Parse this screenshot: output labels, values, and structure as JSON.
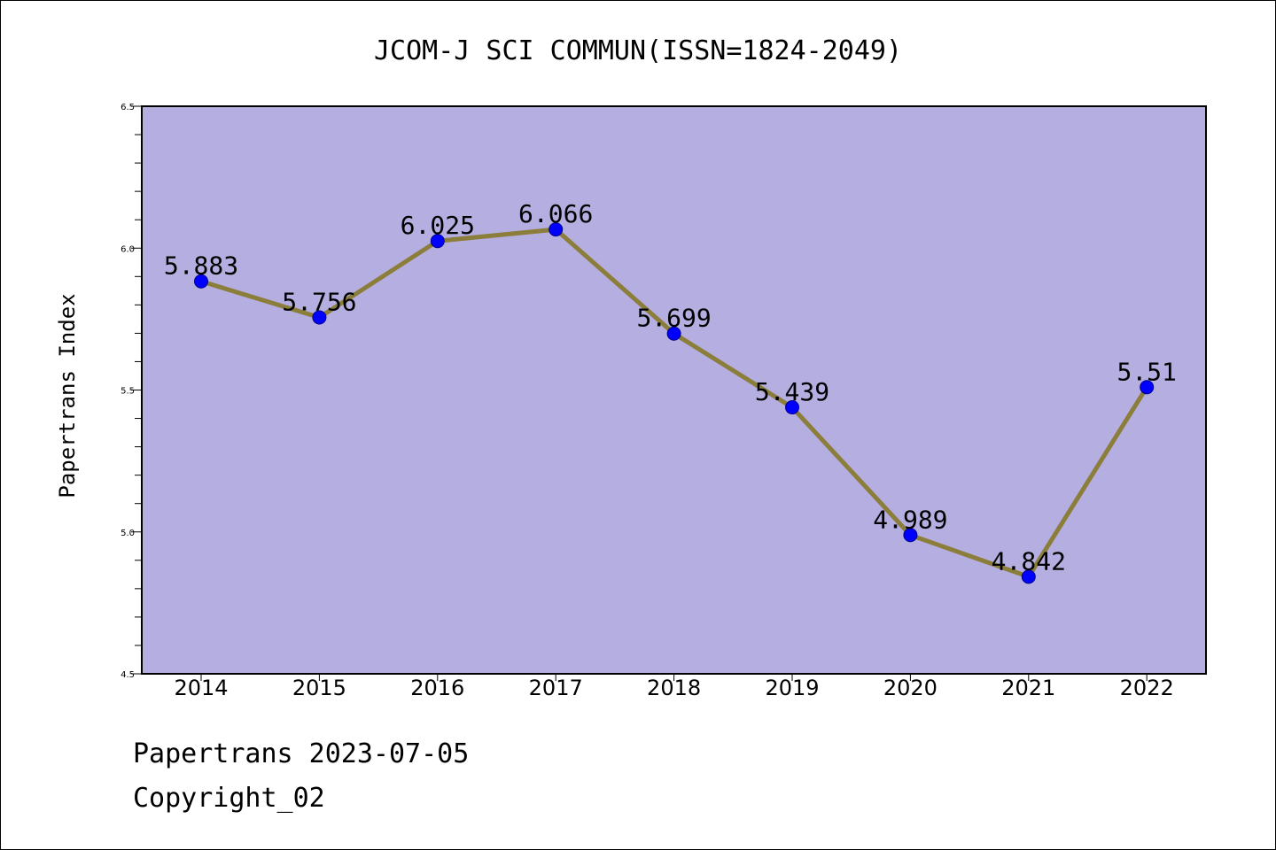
{
  "chart_data": {
    "type": "line",
    "title": "JCOM-J SCI COMMUN(ISSN=1824-2049)",
    "xlabel": "",
    "ylabel": "Papertrans Index",
    "categories": [
      "2014",
      "2015",
      "2016",
      "2017",
      "2018",
      "2019",
      "2020",
      "2021",
      "2022"
    ],
    "values": [
      5.883,
      5.756,
      6.025,
      6.066,
      5.699,
      5.439,
      4.989,
      4.842,
      5.51
    ],
    "data_labels": [
      "5.883",
      "5.756",
      "6.025",
      "6.066",
      "5.699",
      "5.439",
      "4.989",
      "4.842",
      "5.51"
    ],
    "ylim": [
      4.5,
      6.5
    ],
    "yticks": [
      "4.5",
      "5.0",
      "5.5",
      "6.0",
      "6.5"
    ],
    "grid": false,
    "colors": {
      "plot_background": "#b5aee0",
      "line": "#8b7d3a",
      "marker": "#0000ff"
    }
  },
  "footer": {
    "date_line": "Papertrans 2023-07-05",
    "copyright_line": "Copyright_02"
  }
}
